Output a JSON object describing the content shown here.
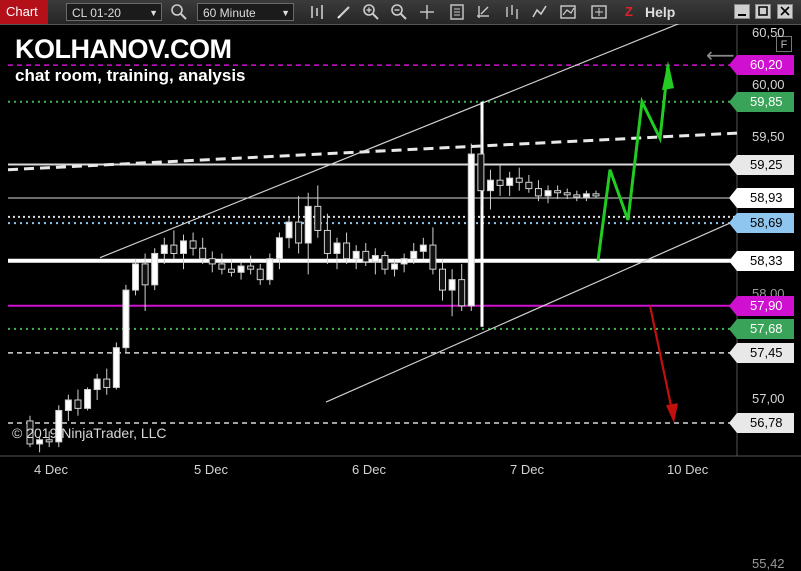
{
  "toolbar": {
    "title": "Chart",
    "instrument": "CL 01-20",
    "interval": "60 Minute",
    "help": "Help",
    "z_label": "Z"
  },
  "overlay": {
    "brand": "KOLHANOV.COM",
    "tagline": "chat room, training, analysis",
    "copyright": "© 2019 NinjaTrader, LLC",
    "f_button": "F"
  },
  "chart_data": {
    "type": "candlestick",
    "instrument": "CL 01-20",
    "interval": "60 Minute",
    "x_ticks": [
      "4 Dec",
      "5 Dec",
      "6 Dec",
      "7 Dec",
      "10 Dec"
    ],
    "y_ticks": [
      "60,50",
      "60,00",
      "59,50",
      "57,00"
    ],
    "y_range": [
      55.42,
      60.58
    ],
    "price_labels": [
      {
        "text": "60,20",
        "value": 60.2,
        "bg": "#d010d0",
        "fg": "#ffffff",
        "line": "dash",
        "line_color": "#d010d0"
      },
      {
        "text": "59,85",
        "value": 59.85,
        "bg": "#3aa35a",
        "fg": "#ffffff",
        "line": "dot",
        "line_color": "#3fb54f"
      },
      {
        "text": "59,25",
        "value": 59.25,
        "bg": "#e8e8e8",
        "fg": "#000000",
        "line": "solid",
        "line_color": "#d8d8d8"
      },
      {
        "text": "58,93",
        "value": 58.93,
        "bg": "#ffffff",
        "fg": "#000000",
        "line": "solid-thin",
        "line_color": "#d8d8d8"
      },
      {
        "text": "58,69",
        "value": 58.69,
        "bg": "#8fc6ef",
        "fg": "#000000",
        "line": "dot",
        "line_color": "#8fc6ef"
      },
      {
        "text": "58,33",
        "value": 58.33,
        "bg": "#ffffff",
        "fg": "#000000",
        "line": "solid-thick",
        "line_color": "#ffffff"
      },
      {
        "text": "57,90",
        "value": 57.9,
        "bg": "#d010d0",
        "fg": "#ffffff",
        "line": "solid",
        "line_color": "#d010d0"
      },
      {
        "text": "57,68",
        "value": 57.68,
        "bg": "#3aa35a",
        "fg": "#ffffff",
        "line": "dot",
        "line_color": "#3fb54f"
      },
      {
        "text": "57,45",
        "value": 57.45,
        "bg": "#e8e8e8",
        "fg": "#000000",
        "line": "dash",
        "line_color": "#d8d8d8"
      },
      {
        "text": "56,78",
        "value": 56.78,
        "bg": "#e8e8e8",
        "fg": "#000000",
        "line": "dash",
        "line_color": "#d8d8d8"
      }
    ],
    "partial_ticks": [
      "58,00",
      "55,42"
    ],
    "candles": [
      [
        56.8,
        56.85,
        56.55,
        56.58
      ],
      [
        56.58,
        56.65,
        56.5,
        56.62
      ],
      [
        56.62,
        56.7,
        56.55,
        56.6
      ],
      [
        56.6,
        56.95,
        56.55,
        56.9
      ],
      [
        56.9,
        57.05,
        56.8,
        57.0
      ],
      [
        57.0,
        57.1,
        56.85,
        56.92
      ],
      [
        56.92,
        57.12,
        56.9,
        57.1
      ],
      [
        57.1,
        57.25,
        57.0,
        57.2
      ],
      [
        57.2,
        57.3,
        57.05,
        57.12
      ],
      [
        57.12,
        57.55,
        57.1,
        57.5
      ],
      [
        57.5,
        58.1,
        57.45,
        58.05
      ],
      [
        58.05,
        58.35,
        58.0,
        58.3
      ],
      [
        58.3,
        58.4,
        57.85,
        58.1
      ],
      [
        58.1,
        58.45,
        58.05,
        58.4
      ],
      [
        58.4,
        58.55,
        58.3,
        58.48
      ],
      [
        58.48,
        58.62,
        58.35,
        58.4
      ],
      [
        58.4,
        58.58,
        58.25,
        58.52
      ],
      [
        58.52,
        58.6,
        58.38,
        58.45
      ],
      [
        58.45,
        58.55,
        58.3,
        58.35
      ],
      [
        58.35,
        58.42,
        58.22,
        58.3
      ],
      [
        58.3,
        58.4,
        58.2,
        58.25
      ],
      [
        58.25,
        58.35,
        58.18,
        58.22
      ],
      [
        58.22,
        58.32,
        58.15,
        58.28
      ],
      [
        58.28,
        58.38,
        58.2,
        58.25
      ],
      [
        58.25,
        58.3,
        58.1,
        58.15
      ],
      [
        58.15,
        58.4,
        58.1,
        58.35
      ],
      [
        58.35,
        58.6,
        58.25,
        58.55
      ],
      [
        58.55,
        58.75,
        58.45,
        58.7
      ],
      [
        58.7,
        58.95,
        58.4,
        58.5
      ],
      [
        58.5,
        58.98,
        58.2,
        58.85
      ],
      [
        58.85,
        59.05,
        58.55,
        58.62
      ],
      [
        58.62,
        58.78,
        58.3,
        58.4
      ],
      [
        58.4,
        58.55,
        58.25,
        58.5
      ],
      [
        58.5,
        58.6,
        58.3,
        58.35
      ],
      [
        58.35,
        58.48,
        58.25,
        58.42
      ],
      [
        58.42,
        58.5,
        58.28,
        58.32
      ],
      [
        58.32,
        58.45,
        58.2,
        58.38
      ],
      [
        58.38,
        58.42,
        58.2,
        58.25
      ],
      [
        58.25,
        58.35,
        58.18,
        58.3
      ],
      [
        58.3,
        58.4,
        58.22,
        58.35
      ],
      [
        58.35,
        58.5,
        58.3,
        58.42
      ],
      [
        58.42,
        58.55,
        58.35,
        58.48
      ],
      [
        58.48,
        58.65,
        58.2,
        58.25
      ],
      [
        58.25,
        58.35,
        57.95,
        58.05
      ],
      [
        58.05,
        58.25,
        57.8,
        58.15
      ],
      [
        58.15,
        58.3,
        57.85,
        57.9
      ],
      [
        57.9,
        59.45,
        57.85,
        59.35
      ],
      [
        59.35,
        59.55,
        58.85,
        59.0
      ],
      [
        59.0,
        59.2,
        58.82,
        59.1
      ],
      [
        59.1,
        59.25,
        58.95,
        59.05
      ],
      [
        59.05,
        59.18,
        58.95,
        59.12
      ],
      [
        59.12,
        59.22,
        59.0,
        59.08
      ],
      [
        59.08,
        59.15,
        58.98,
        59.02
      ],
      [
        59.02,
        59.1,
        58.9,
        58.95
      ],
      [
        58.95,
        59.05,
        58.88,
        59.0
      ],
      [
        59.0,
        59.05,
        58.92,
        58.98
      ],
      [
        58.98,
        59.02,
        58.92,
        58.96
      ],
      [
        58.96,
        59.0,
        58.9,
        58.94
      ],
      [
        58.94,
        59.0,
        58.9,
        58.97
      ],
      [
        58.97,
        59.0,
        58.93,
        58.95
      ]
    ]
  }
}
